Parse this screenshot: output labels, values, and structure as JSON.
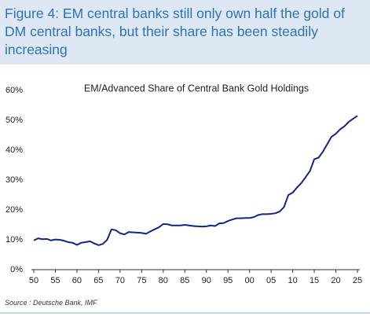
{
  "chart_data": {
    "type": "line",
    "title": "Figure 4: EM central banks still only own half the gold of DM central banks, but their share has been steadily increasing",
    "subtitle": "EM/Advanced Share of Central Bank Gold Holdings",
    "source": "Source : Deutsche Bank, IMF",
    "x": [
      1950,
      1951,
      1952,
      1953,
      1954,
      1955,
      1956,
      1957,
      1958,
      1959,
      1960,
      1961,
      1962,
      1963,
      1964,
      1965,
      1966,
      1967,
      1968,
      1969,
      1970,
      1971,
      1972,
      1973,
      1974,
      1975,
      1976,
      1977,
      1978,
      1979,
      1980,
      1981,
      1982,
      1983,
      1984,
      1985,
      1986,
      1987,
      1988,
      1989,
      1990,
      1991,
      1992,
      1993,
      1994,
      1995,
      1996,
      1997,
      1998,
      1999,
      2000,
      2001,
      2002,
      2003,
      2004,
      2005,
      2006,
      2007,
      2008,
      2009,
      2010,
      2011,
      2012,
      2013,
      2014,
      2015,
      2016,
      2017,
      2018,
      2019,
      2020,
      2021,
      2022,
      2023,
      2024,
      2025
    ],
    "series": [
      {
        "name": "EM/Advanced share",
        "color": "#16267a",
        "values": [
          9.8,
          10.5,
          10.2,
          10.3,
          9.8,
          10.1,
          10.0,
          9.7,
          9.2,
          9.0,
          8.3,
          9.0,
          9.2,
          9.5,
          8.8,
          8.2,
          8.6,
          10.0,
          13.5,
          13.2,
          12.2,
          11.8,
          12.6,
          12.5,
          12.4,
          12.3,
          12.0,
          12.8,
          13.5,
          14.2,
          15.3,
          15.2,
          14.8,
          14.8,
          14.8,
          15.0,
          14.8,
          14.6,
          14.5,
          14.4,
          14.5,
          14.8,
          14.6,
          15.5,
          15.6,
          16.3,
          16.8,
          17.2,
          17.2,
          17.3,
          17.3,
          17.6,
          18.3,
          18.6,
          18.6,
          18.7,
          18.9,
          19.5,
          21.0,
          25.0,
          25.8,
          27.5,
          29.0,
          31.0,
          33.0,
          37.0,
          37.5,
          39.5,
          42.0,
          44.5,
          45.5,
          47.0,
          48.0,
          49.5,
          50.5,
          51.5
        ]
      }
    ],
    "xlim": [
      1950,
      2025
    ],
    "xticks": [
      {
        "value": 1950,
        "label": "50"
      },
      {
        "value": 1955,
        "label": "55"
      },
      {
        "value": 1960,
        "label": "60"
      },
      {
        "value": 1965,
        "label": "65"
      },
      {
        "value": 1970,
        "label": "70"
      },
      {
        "value": 1975,
        "label": "75"
      },
      {
        "value": 1980,
        "label": "80"
      },
      {
        "value": 1985,
        "label": "85"
      },
      {
        "value": 1990,
        "label": "90"
      },
      {
        "value": 1995,
        "label": "95"
      },
      {
        "value": 2000,
        "label": "00"
      },
      {
        "value": 2005,
        "label": "05"
      },
      {
        "value": 2010,
        "label": "10"
      },
      {
        "value": 2015,
        "label": "15"
      },
      {
        "value": 2020,
        "label": "20"
      },
      {
        "value": 2025,
        "label": "25"
      }
    ],
    "ylim": [
      0,
      60
    ],
    "yticks": [
      {
        "value": 0,
        "label": "0%"
      },
      {
        "value": 10,
        "label": "10%"
      },
      {
        "value": 20,
        "label": "20%"
      },
      {
        "value": 30,
        "label": "30%"
      },
      {
        "value": 40,
        "label": "40%"
      },
      {
        "value": 50,
        "label": "50%"
      },
      {
        "value": 60,
        "label": "60%"
      }
    ],
    "grid": false
  }
}
